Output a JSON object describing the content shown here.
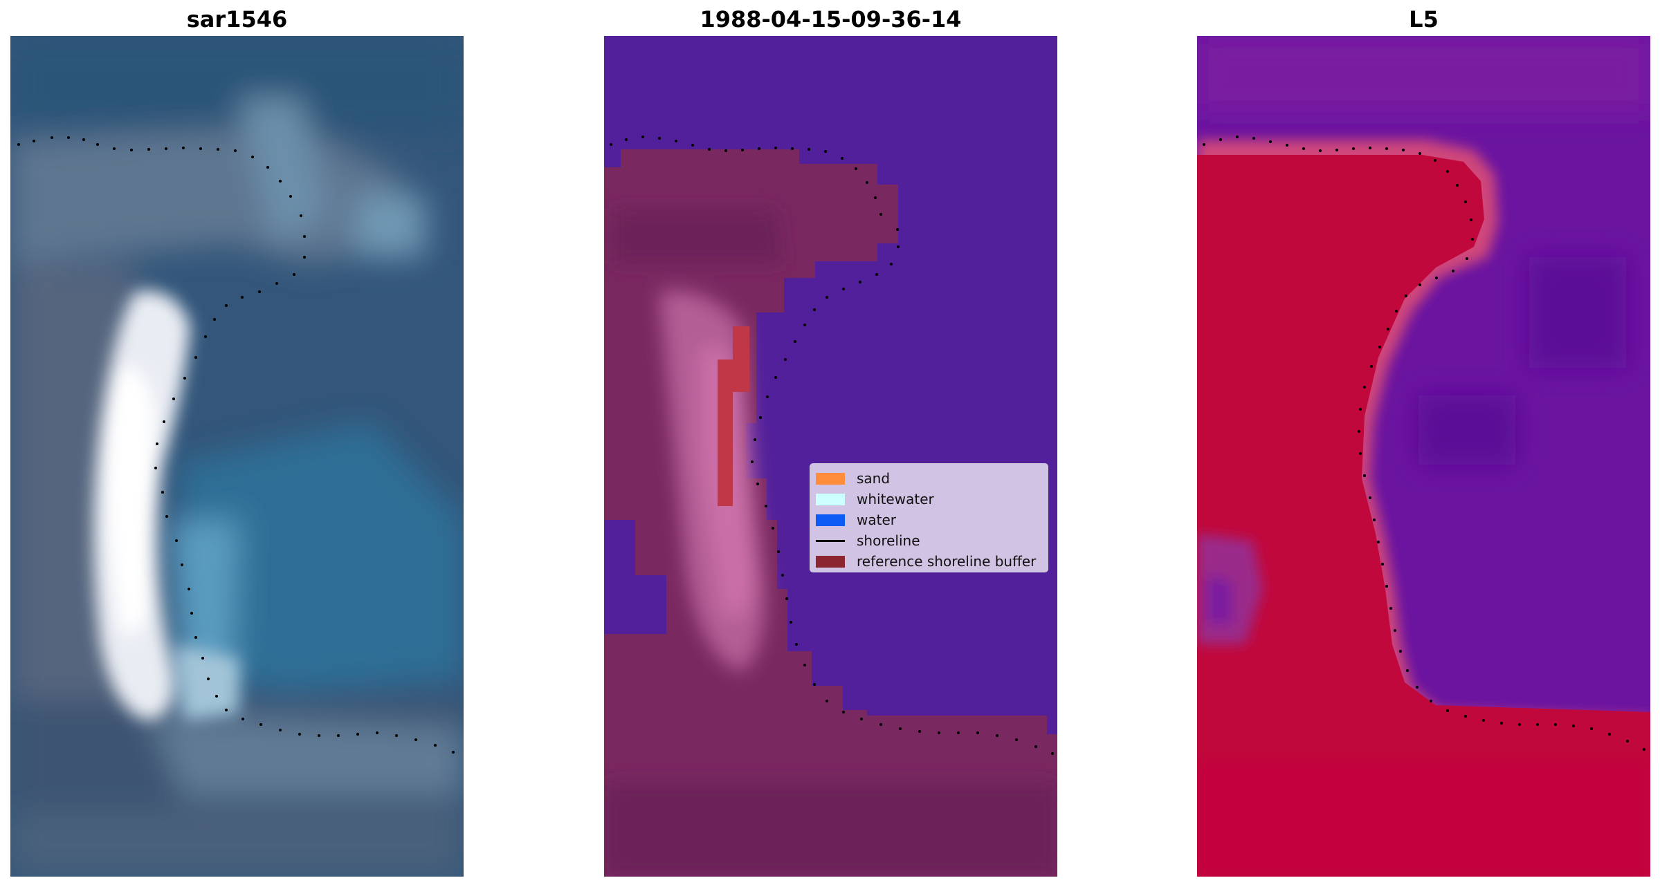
{
  "panels": [
    {
      "title": "sar1546",
      "image": "rgb satellite image of a coastal spit"
    },
    {
      "title": "1988-04-15-09-36-14",
      "image": "classified image overlay"
    },
    {
      "title": "L5",
      "image": "mndwi index image"
    }
  ],
  "legend": {
    "items": [
      {
        "label": "sand",
        "color": "#ff8c3a",
        "kind": "patch"
      },
      {
        "label": "whitewater",
        "color": "#ccffff",
        "kind": "patch"
      },
      {
        "label": "water",
        "color": "#0a5cf5",
        "kind": "patch"
      },
      {
        "label": "shoreline",
        "color": "#000000",
        "kind": "line"
      },
      {
        "label": "reference shoreline buffer",
        "color": "#8b2530",
        "kind": "patch"
      }
    ]
  },
  "colors": {
    "rgb_water": "#2f5578",
    "rgb_sand_white": "#f4f6fb",
    "class_water": "#52209a",
    "class_land": "#7a2860",
    "class_buffer": "#c03848",
    "index_land": "#c0083c",
    "index_water": "#66109a"
  }
}
